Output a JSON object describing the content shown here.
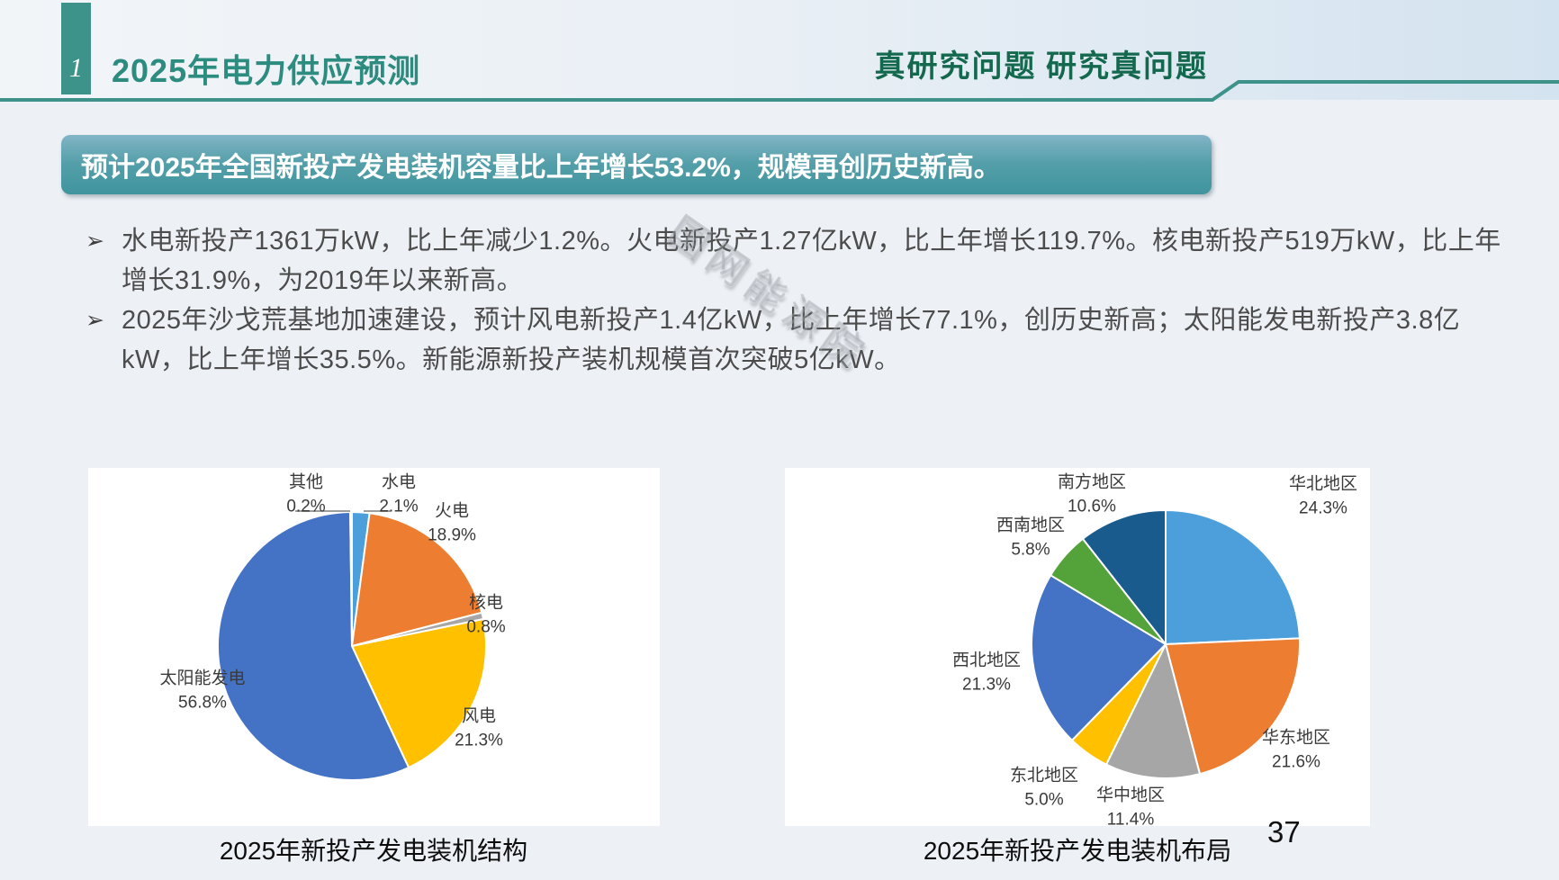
{
  "slide": {
    "header": {
      "index": "1",
      "title": "2025年电力供应预测",
      "slogan": "真研究问题 研究真问题"
    },
    "banner": "预计2025年全国新投产发电装机容量比上年增长53.2%，规模再创历史新高。",
    "bullet_char": "➢",
    "bullets": [
      "水电新投产1361万kW，比上年减少1.2%。火电新投产1.27亿kW，比上年增长119.7%。核电新投产519万kW，比上年增长31.9%，为2019年以来新高。",
      "2025年沙戈荒基地加速建设，预计风电新投产1.4亿kW，比上年增长77.1%，创历史新高；太阳能发电新投产3.8亿kW，比上年增长35.5%。新能源新投产装机规模首次突破5亿kW。"
    ],
    "watermark": "国网能源院",
    "page_number": "37",
    "colors": {
      "accent_teal": "#3d9289",
      "title_teal": "#2d8c80",
      "slogan_green": "#14684e",
      "banner_top": "#82b4c6",
      "banner_bottom": "#3f949e"
    }
  },
  "chart_data": [
    {
      "type": "pie",
      "title": "2025年新投产发电装机结构",
      "legend_position": "labels-around-pie",
      "slices": [
        {
          "label": "水电",
          "value": 2.1,
          "pct_label": "2.1%",
          "color": "#4d9fdb"
        },
        {
          "label": "火电",
          "value": 18.9,
          "pct_label": "18.9%",
          "color": "#ed7d31"
        },
        {
          "label": "核电",
          "value": 0.8,
          "pct_label": "0.8%",
          "color": "#a6a6a6"
        },
        {
          "label": "风电",
          "value": 21.3,
          "pct_label": "21.3%",
          "color": "#ffc000"
        },
        {
          "label": "太阳能发电",
          "value": 56.8,
          "pct_label": "56.8%",
          "color": "#4472c4"
        },
        {
          "label": "其他",
          "value": 0.2,
          "pct_label": "0.2%",
          "color": "#264478"
        }
      ]
    },
    {
      "type": "pie",
      "title": "2025年新投产发电装机布局",
      "legend_position": "labels-around-pie",
      "slices": [
        {
          "label": "华北地区",
          "value": 24.3,
          "pct_label": "24.3%",
          "color": "#4d9fdb"
        },
        {
          "label": "华东地区",
          "value": 21.6,
          "pct_label": "21.6%",
          "color": "#ed7d31"
        },
        {
          "label": "华中地区",
          "value": 11.4,
          "pct_label": "11.4%",
          "color": "#a6a6a6"
        },
        {
          "label": "东北地区",
          "value": 5.0,
          "pct_label": "5.0%",
          "color": "#ffc000"
        },
        {
          "label": "西北地区",
          "value": 21.3,
          "pct_label": "21.3%",
          "color": "#4472c4"
        },
        {
          "label": "西南地区",
          "value": 5.8,
          "pct_label": "5.8%",
          "color": "#54a33a"
        },
        {
          "label": "南方地区",
          "value": 10.6,
          "pct_label": "10.6%",
          "color": "#1a5b8d"
        }
      ]
    }
  ]
}
